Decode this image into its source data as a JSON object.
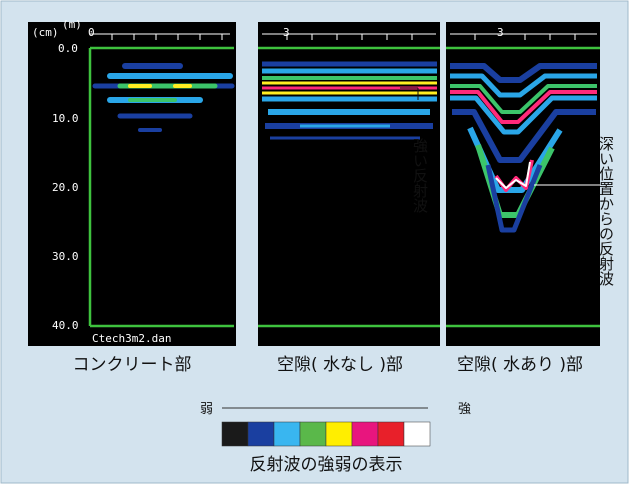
{
  "panels": [
    {
      "caption": "コンクリート部",
      "y_unit": "(cm)",
      "x_unit": "(m)",
      "x_tick": "0",
      "y_ticks": [
        "0.0",
        "10.0",
        "20.0",
        "30.0",
        "40.0"
      ],
      "file": "Ctech3m2.dan"
    },
    {
      "caption": "空隙( 水なし )部",
      "x_tick": "3",
      "annotation": "強い反射波"
    },
    {
      "caption": "空隙( 水あり )部",
      "x_tick": "3",
      "annotation": "深い位置からの反射波"
    }
  ],
  "legend": {
    "weak": "弱",
    "strong": "強",
    "caption": "反射波の強弱の表示"
  }
}
